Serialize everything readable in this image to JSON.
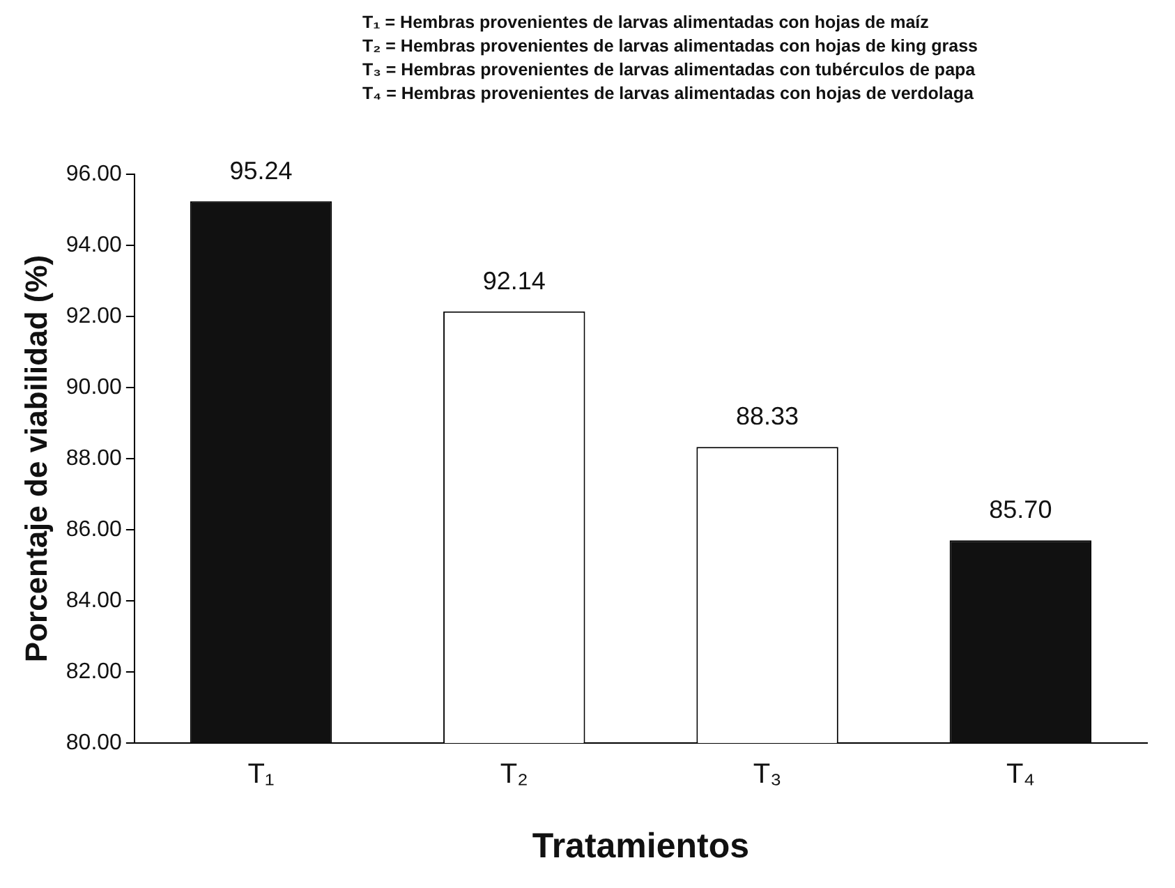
{
  "chart_data": {
    "type": "bar",
    "xlabel": "Tratamientos",
    "ylabel": "Porcentaje de viabilidad (%)",
    "annotations": [
      "T₁ = Hembras provenientes de larvas alimentadas con hojas de maíz",
      "T₂ = Hembras provenientes de larvas alimentadas con hojas de king grass",
      "T₃ = Hembras provenientes de larvas alimentadas con tubérculos de papa",
      "T₄ = Hembras provenientes de larvas alimentadas con hojas de verdolaga"
    ],
    "categories": [
      "T₁",
      "T₂",
      "T₃",
      "T₄"
    ],
    "values": [
      95.24,
      92.14,
      88.33,
      85.7
    ],
    "value_labels": [
      "95.24",
      "92.14",
      "88.33",
      "85.70"
    ],
    "colors": [
      "#111111",
      "#ffffff",
      "#ffffff",
      "#111111"
    ],
    "ylim": [
      80,
      96
    ],
    "yticks": [
      {
        "value": 80,
        "label": "80.00"
      },
      {
        "value": 82,
        "label": "82.00"
      },
      {
        "value": 84,
        "label": "84.00"
      },
      {
        "value": 86,
        "label": "86.00"
      },
      {
        "value": 88,
        "label": "88.00"
      },
      {
        "value": 90,
        "label": "90.00"
      },
      {
        "value": 92,
        "label": "92.00"
      },
      {
        "value": 94,
        "label": "94.00"
      },
      {
        "value": 96,
        "label": "96.00"
      }
    ],
    "grid": false,
    "legend": false
  }
}
